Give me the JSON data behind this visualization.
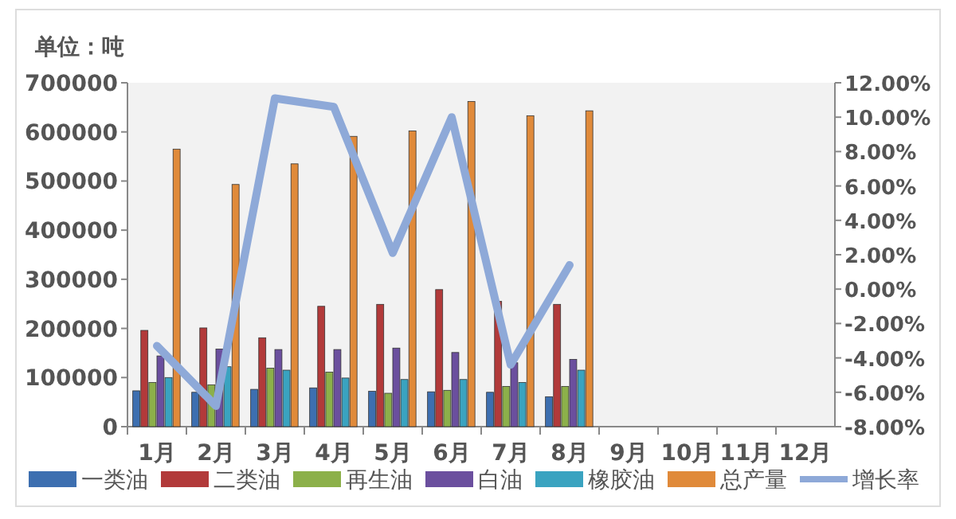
{
  "chart_data": {
    "type": "bar",
    "ylabel": "单位：吨",
    "categories": [
      "1月",
      "2月",
      "3月",
      "4月",
      "5月",
      "6月",
      "7月",
      "8月",
      "9月",
      "10月",
      "11月",
      "12月"
    ],
    "series": [
      {
        "name": "一类油",
        "color": "#3d6fb0",
        "values": [
          73000,
          70000,
          76000,
          79000,
          72000,
          71000,
          70000,
          61000,
          null,
          null,
          null,
          null
        ]
      },
      {
        "name": "二类油",
        "color": "#b23a3a",
        "values": [
          196000,
          201000,
          181000,
          245000,
          249000,
          279000,
          255000,
          249000,
          null,
          null,
          null,
          null
        ]
      },
      {
        "name": "再生油",
        "color": "#8cb04a",
        "values": [
          90000,
          85000,
          119000,
          111000,
          68000,
          74000,
          82000,
          82000,
          null,
          null,
          null,
          null
        ]
      },
      {
        "name": "白油",
        "color": "#6b4f9e",
        "values": [
          144000,
          158000,
          157000,
          157000,
          160000,
          151000,
          130000,
          137000,
          null,
          null,
          null,
          null
        ]
      },
      {
        "name": "橡胶油",
        "color": "#3aa3c0",
        "values": [
          100000,
          122000,
          115000,
          99000,
          96000,
          96000,
          90000,
          115000,
          null,
          null,
          null,
          null
        ]
      },
      {
        "name": "总产量",
        "color": "#e08a3a",
        "values": [
          565000,
          493000,
          535000,
          591000,
          602000,
          662000,
          633000,
          643000,
          null,
          null,
          null,
          null
        ]
      },
      {
        "name": "增长率",
        "type": "line",
        "axis": "y2",
        "color": "#8ea9d8",
        "values": [
          -3.3,
          -6.8,
          11.1,
          10.6,
          2.1,
          10.0,
          -4.4,
          1.4,
          null,
          null,
          null,
          null
        ]
      }
    ],
    "ylim": [
      0,
      700000
    ],
    "yticks": [
      0,
      100000,
      200000,
      300000,
      400000,
      500000,
      600000,
      700000
    ],
    "y2lim": [
      -8,
      12
    ],
    "y2ticks": [
      {
        "value": 12,
        "label": "12.00%"
      },
      {
        "value": 10,
        "label": "10.00%"
      },
      {
        "value": 8,
        "label": "8.00%"
      },
      {
        "value": 6,
        "label": "6.00%"
      },
      {
        "value": 4,
        "label": "4.00%"
      },
      {
        "value": 2,
        "label": "2.00%"
      },
      {
        "value": 0,
        "label": "0.00%"
      },
      {
        "value": -2,
        "label": "-2.00%"
      },
      {
        "value": -4,
        "label": "-4.00%"
      },
      {
        "value": -6,
        "label": "-6.00%"
      },
      {
        "value": -8,
        "label": "-8.00%"
      }
    ],
    "legend": "bottom",
    "grid": false
  }
}
